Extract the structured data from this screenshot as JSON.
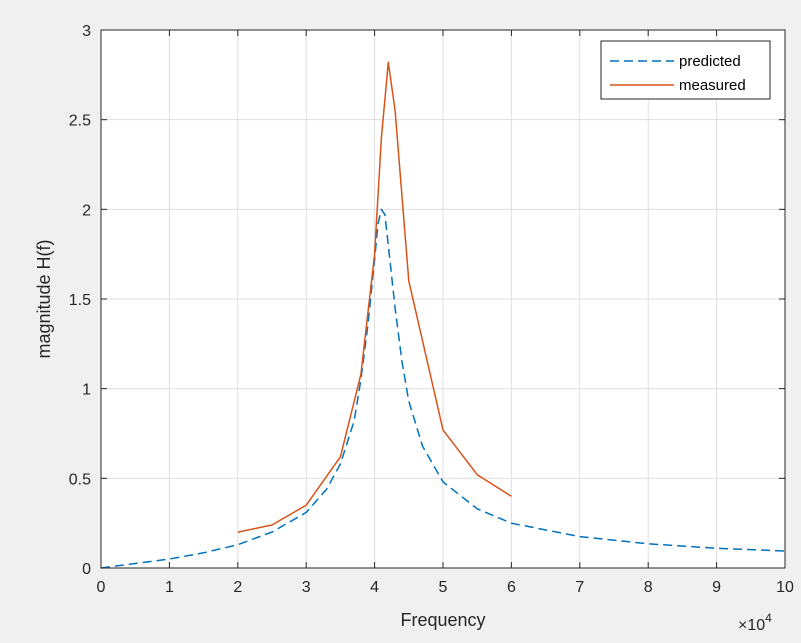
{
  "chart_data": {
    "type": "line",
    "title": "",
    "xlabel": "Frequency",
    "ylabel": "magnitude H(f)",
    "x_exponent_label": {
      "base": "×10",
      "exp": "4"
    },
    "xlim": [
      0,
      10
    ],
    "ylim": [
      0,
      3
    ],
    "xticks": [
      0,
      1,
      2,
      3,
      4,
      5,
      6,
      7,
      8,
      9,
      10
    ],
    "xtick_labels": [
      "0",
      "1",
      "2",
      "3",
      "4",
      "5",
      "6",
      "7",
      "8",
      "9",
      "10"
    ],
    "yticks": [
      0,
      0.5,
      1,
      1.5,
      2,
      2.5,
      3
    ],
    "ytick_labels": [
      "0",
      "0.5",
      "1",
      "1.5",
      "2",
      "2.5",
      "3"
    ],
    "grid": true,
    "legend_position": "top-right",
    "series": [
      {
        "name": "predicted",
        "style": "dashed",
        "color": "#0072BD",
        "x": [
          0,
          0.5,
          1,
          1.5,
          2,
          2.5,
          3,
          3.3,
          3.5,
          3.7,
          3.8,
          3.9,
          4.0,
          4.05,
          4.1,
          4.15,
          4.2,
          4.3,
          4.4,
          4.5,
          4.7,
          5.0,
          5.5,
          6.0,
          7.0,
          8.0,
          9.0,
          10.0
        ],
        "y": [
          0,
          0.025,
          0.05,
          0.085,
          0.13,
          0.2,
          0.31,
          0.44,
          0.58,
          0.82,
          1.05,
          1.35,
          1.72,
          1.92,
          2.0,
          1.97,
          1.8,
          1.45,
          1.15,
          0.93,
          0.68,
          0.48,
          0.33,
          0.25,
          0.175,
          0.135,
          0.11,
          0.095
        ]
      },
      {
        "name": "measured",
        "style": "solid",
        "color": "#D95319",
        "x": [
          2,
          2.5,
          3,
          3.5,
          3.8,
          4.0,
          4.1,
          4.2,
          4.3,
          4.5,
          5.0,
          5.5,
          6.0
        ],
        "y": [
          0.2,
          0.24,
          0.35,
          0.62,
          1.08,
          1.75,
          2.4,
          2.82,
          2.55,
          1.6,
          0.77,
          0.52,
          0.4
        ]
      }
    ]
  }
}
